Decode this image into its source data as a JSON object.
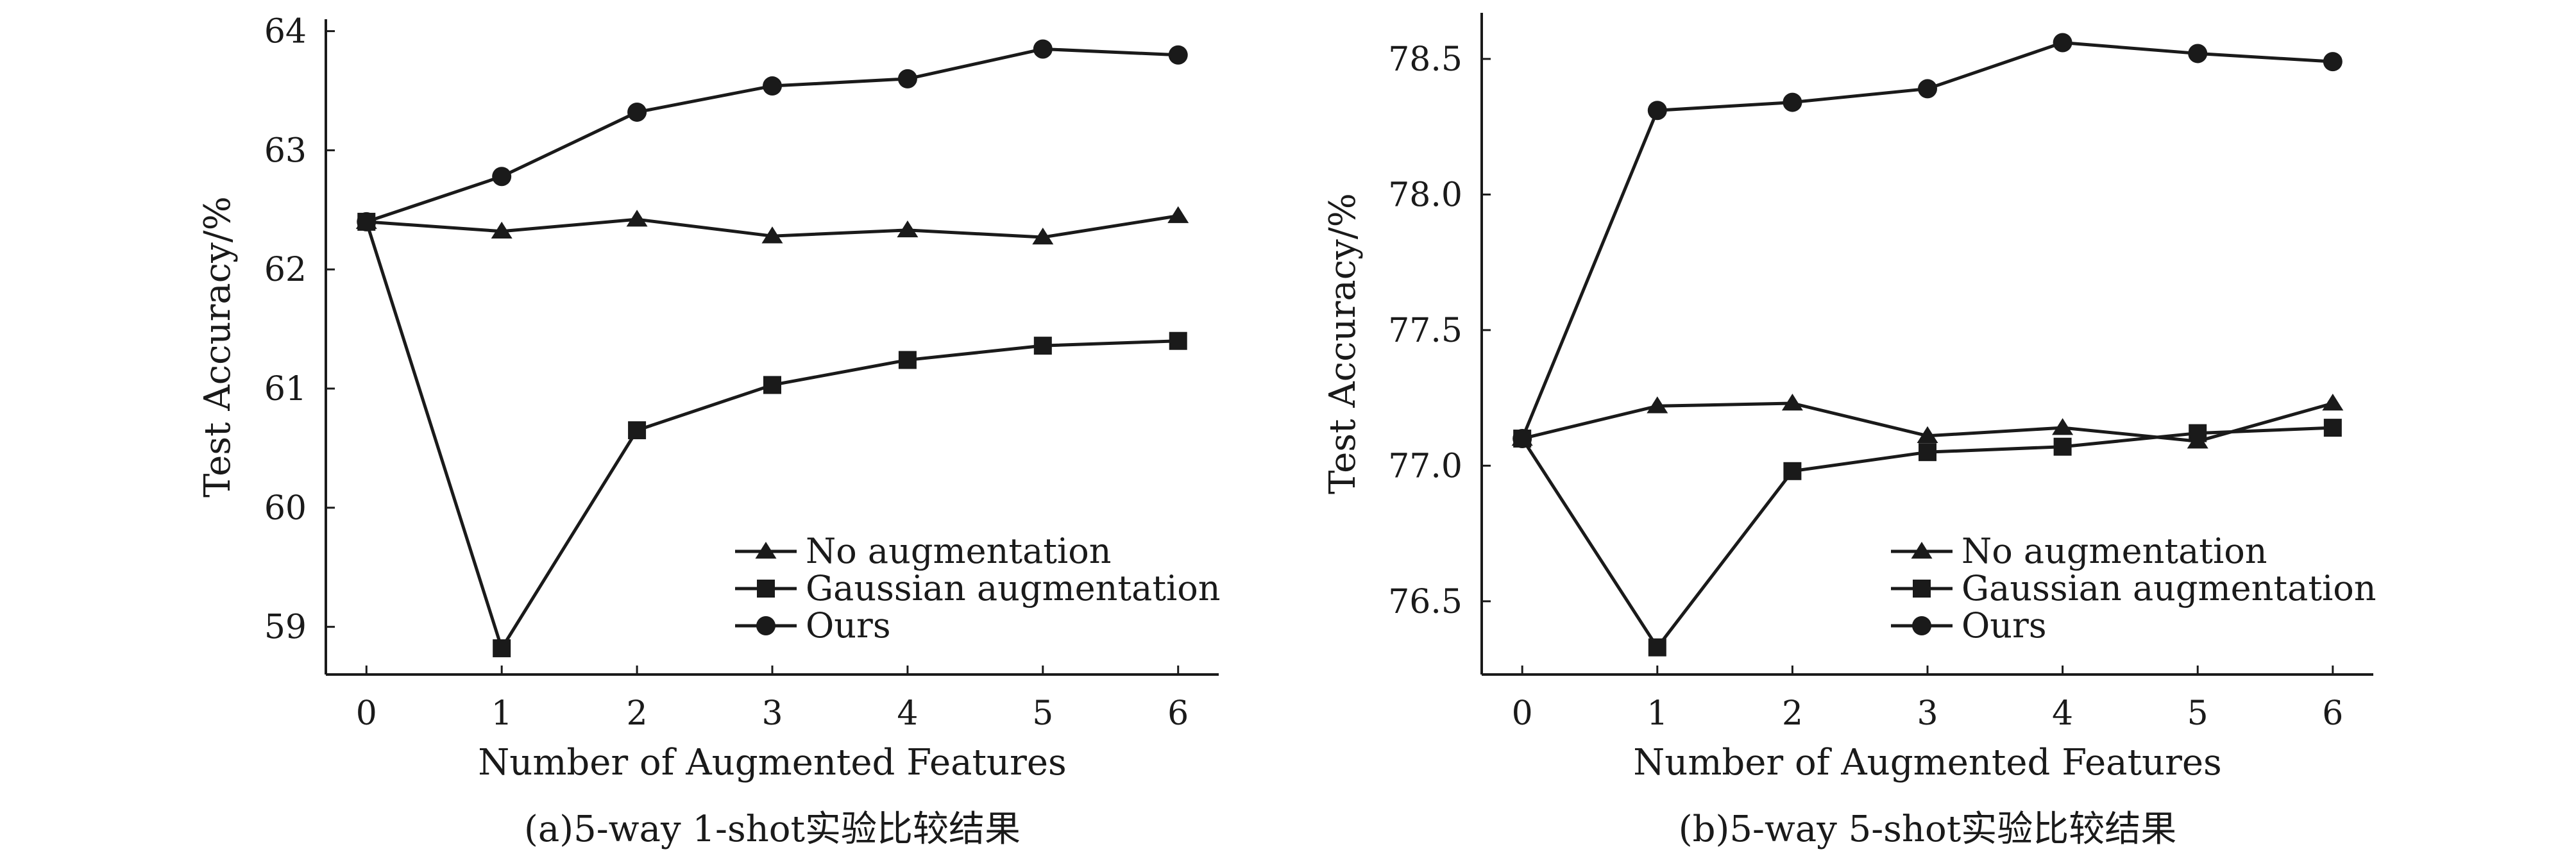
{
  "chart_data": [
    {
      "type": "line",
      "title": "",
      "caption": "(a)5-way 1-shot实验比较结果",
      "xlabel": "Number of Augmented Features",
      "ylabel": "Test Accuracy/%",
      "x": [
        0,
        1,
        2,
        3,
        4,
        5,
        6
      ],
      "xlim": [
        -0.3,
        6.3
      ],
      "ylim": [
        58.6,
        64.1
      ],
      "yticks": [
        59,
        60,
        61,
        62,
        63,
        64
      ],
      "ytick_labels": [
        "59",
        "60",
        "61",
        "62",
        "63",
        "64"
      ],
      "legend": "lower-right",
      "series": [
        {
          "name": "No augmentation",
          "marker": "triangle",
          "values": [
            62.4,
            62.32,
            62.42,
            62.28,
            62.33,
            62.27,
            62.45
          ]
        },
        {
          "name": "Gaussian augmentation",
          "marker": "square",
          "values": [
            62.4,
            58.82,
            60.65,
            61.03,
            61.24,
            61.36,
            61.4
          ]
        },
        {
          "name": "Ours",
          "marker": "circle",
          "values": [
            62.4,
            62.78,
            63.32,
            63.54,
            63.6,
            63.85,
            63.8
          ]
        }
      ]
    },
    {
      "type": "line",
      "title": "",
      "caption": "(b)5-way 5-shot实验比较结果",
      "xlabel": "Number of Augmented Features",
      "ylabel": "Test Accuracy/%",
      "x": [
        0,
        1,
        2,
        3,
        4,
        5,
        6
      ],
      "xlim": [
        -0.3,
        6.3
      ],
      "ylim": [
        76.23,
        78.67
      ],
      "yticks": [
        76.5,
        77.0,
        77.5,
        78.0,
        78.5
      ],
      "ytick_labels": [
        "76.5",
        "77.0",
        "77.5",
        "78.0",
        "78.5"
      ],
      "legend": "lower-right",
      "series": [
        {
          "name": "No augmentation",
          "marker": "triangle",
          "values": [
            77.1,
            77.22,
            77.23,
            77.11,
            77.14,
            77.09,
            77.23
          ]
        },
        {
          "name": "Gaussian augmentation",
          "marker": "square",
          "values": [
            77.1,
            76.33,
            76.98,
            77.05,
            77.07,
            77.12,
            77.14
          ]
        },
        {
          "name": "Ours",
          "marker": "circle",
          "values": [
            77.1,
            78.31,
            78.34,
            78.39,
            78.56,
            78.52,
            78.49
          ]
        }
      ]
    }
  ],
  "colors": {
    "ink": "#1a1a1a",
    "background": "#ffffff"
  }
}
